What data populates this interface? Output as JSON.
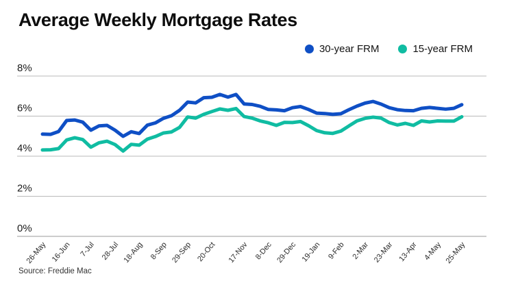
{
  "title": "Average Weekly Mortgage Rates",
  "source": "Source: Freddie Mac",
  "legend": {
    "items": [
      {
        "label": "30-year FRM",
        "color": "#0f4fc5"
      },
      {
        "label": "15-year FRM",
        "color": "#10bca2"
      }
    ]
  },
  "chart_data": {
    "type": "line",
    "title": "Average Weekly Mortgage Rates",
    "x_unit": "weekly observations",
    "dates": [
      "26-May",
      "2-Jun",
      "9-Jun",
      "16-Jun",
      "23-Jun",
      "30-Jun",
      "7-Jul",
      "14-Jul",
      "21-Jul",
      "28-Jul",
      "4-Aug",
      "11-Aug",
      "18-Aug",
      "25-Aug",
      "1-Sep",
      "8-Sep",
      "15-Sep",
      "22-Sep",
      "29-Sep",
      "6-Oct",
      "13-Oct",
      "20-Oct",
      "27-Oct",
      "3-Nov",
      "10-Nov",
      "17-Nov",
      "23-Nov",
      "1-Dec",
      "8-Dec",
      "15-Dec",
      "22-Dec",
      "29-Dec",
      "5-Jan",
      "12-Jan",
      "19-Jan",
      "26-Jan",
      "2-Feb",
      "9-Feb",
      "16-Feb",
      "23-Feb",
      "2-Mar",
      "9-Mar",
      "16-Mar",
      "23-Mar",
      "30-Mar",
      "6-Apr",
      "13-Apr",
      "20-Apr",
      "27-Apr",
      "4-May",
      "11-May",
      "18-May",
      "25-May"
    ],
    "series": [
      {
        "name": "30-year FRM",
        "color": "#0f4fc5",
        "values": [
          5.1,
          5.09,
          5.23,
          5.78,
          5.81,
          5.7,
          5.3,
          5.51,
          5.54,
          5.3,
          4.99,
          5.22,
          5.13,
          5.55,
          5.66,
          5.89,
          6.02,
          6.29,
          6.7,
          6.66,
          6.92,
          6.94,
          7.08,
          6.95,
          7.08,
          6.61,
          6.58,
          6.49,
          6.33,
          6.31,
          6.27,
          6.42,
          6.48,
          6.33,
          6.15,
          6.13,
          6.09,
          6.12,
          6.32,
          6.5,
          6.65,
          6.73,
          6.6,
          6.42,
          6.32,
          6.28,
          6.27,
          6.39,
          6.43,
          6.39,
          6.35,
          6.39,
          6.57
        ]
      },
      {
        "name": "15-year FRM",
        "color": "#10bca2",
        "values": [
          4.31,
          4.32,
          4.38,
          4.81,
          4.92,
          4.83,
          4.45,
          4.67,
          4.75,
          4.58,
          4.26,
          4.59,
          4.55,
          4.85,
          4.98,
          5.16,
          5.21,
          5.44,
          5.96,
          5.9,
          6.09,
          6.23,
          6.36,
          6.29,
          6.38,
          5.98,
          5.9,
          5.76,
          5.67,
          5.54,
          5.69,
          5.68,
          5.73,
          5.52,
          5.28,
          5.17,
          5.14,
          5.25,
          5.51,
          5.76,
          5.89,
          5.95,
          5.9,
          5.68,
          5.56,
          5.64,
          5.54,
          5.76,
          5.71,
          5.76,
          5.75,
          5.75,
          5.97
        ]
      }
    ],
    "x_tick_labels": [
      "26-May",
      "16-Jun",
      "7-Jul",
      "28-Jul",
      "18-Aug",
      "8-Sep",
      "29-Sep",
      "20-Oct",
      "17-Nov",
      "8-Dec",
      "29-Dec",
      "19-Jan",
      "9-Feb",
      "2-Mar",
      "23-Mar",
      "13-Apr",
      "4-May",
      "25-May"
    ],
    "x_tick_indices": [
      0,
      3,
      6,
      9,
      12,
      15,
      18,
      21,
      25,
      28,
      31,
      34,
      37,
      40,
      43,
      46,
      49,
      52
    ],
    "y_tick_labels": [
      "0%",
      "2%",
      "4%",
      "6%",
      "8%"
    ],
    "y_tick_values": [
      0,
      2,
      4,
      6,
      8
    ],
    "ylim": [
      0,
      8
    ],
    "grid": "horizontal",
    "legend_position": "top-right"
  }
}
